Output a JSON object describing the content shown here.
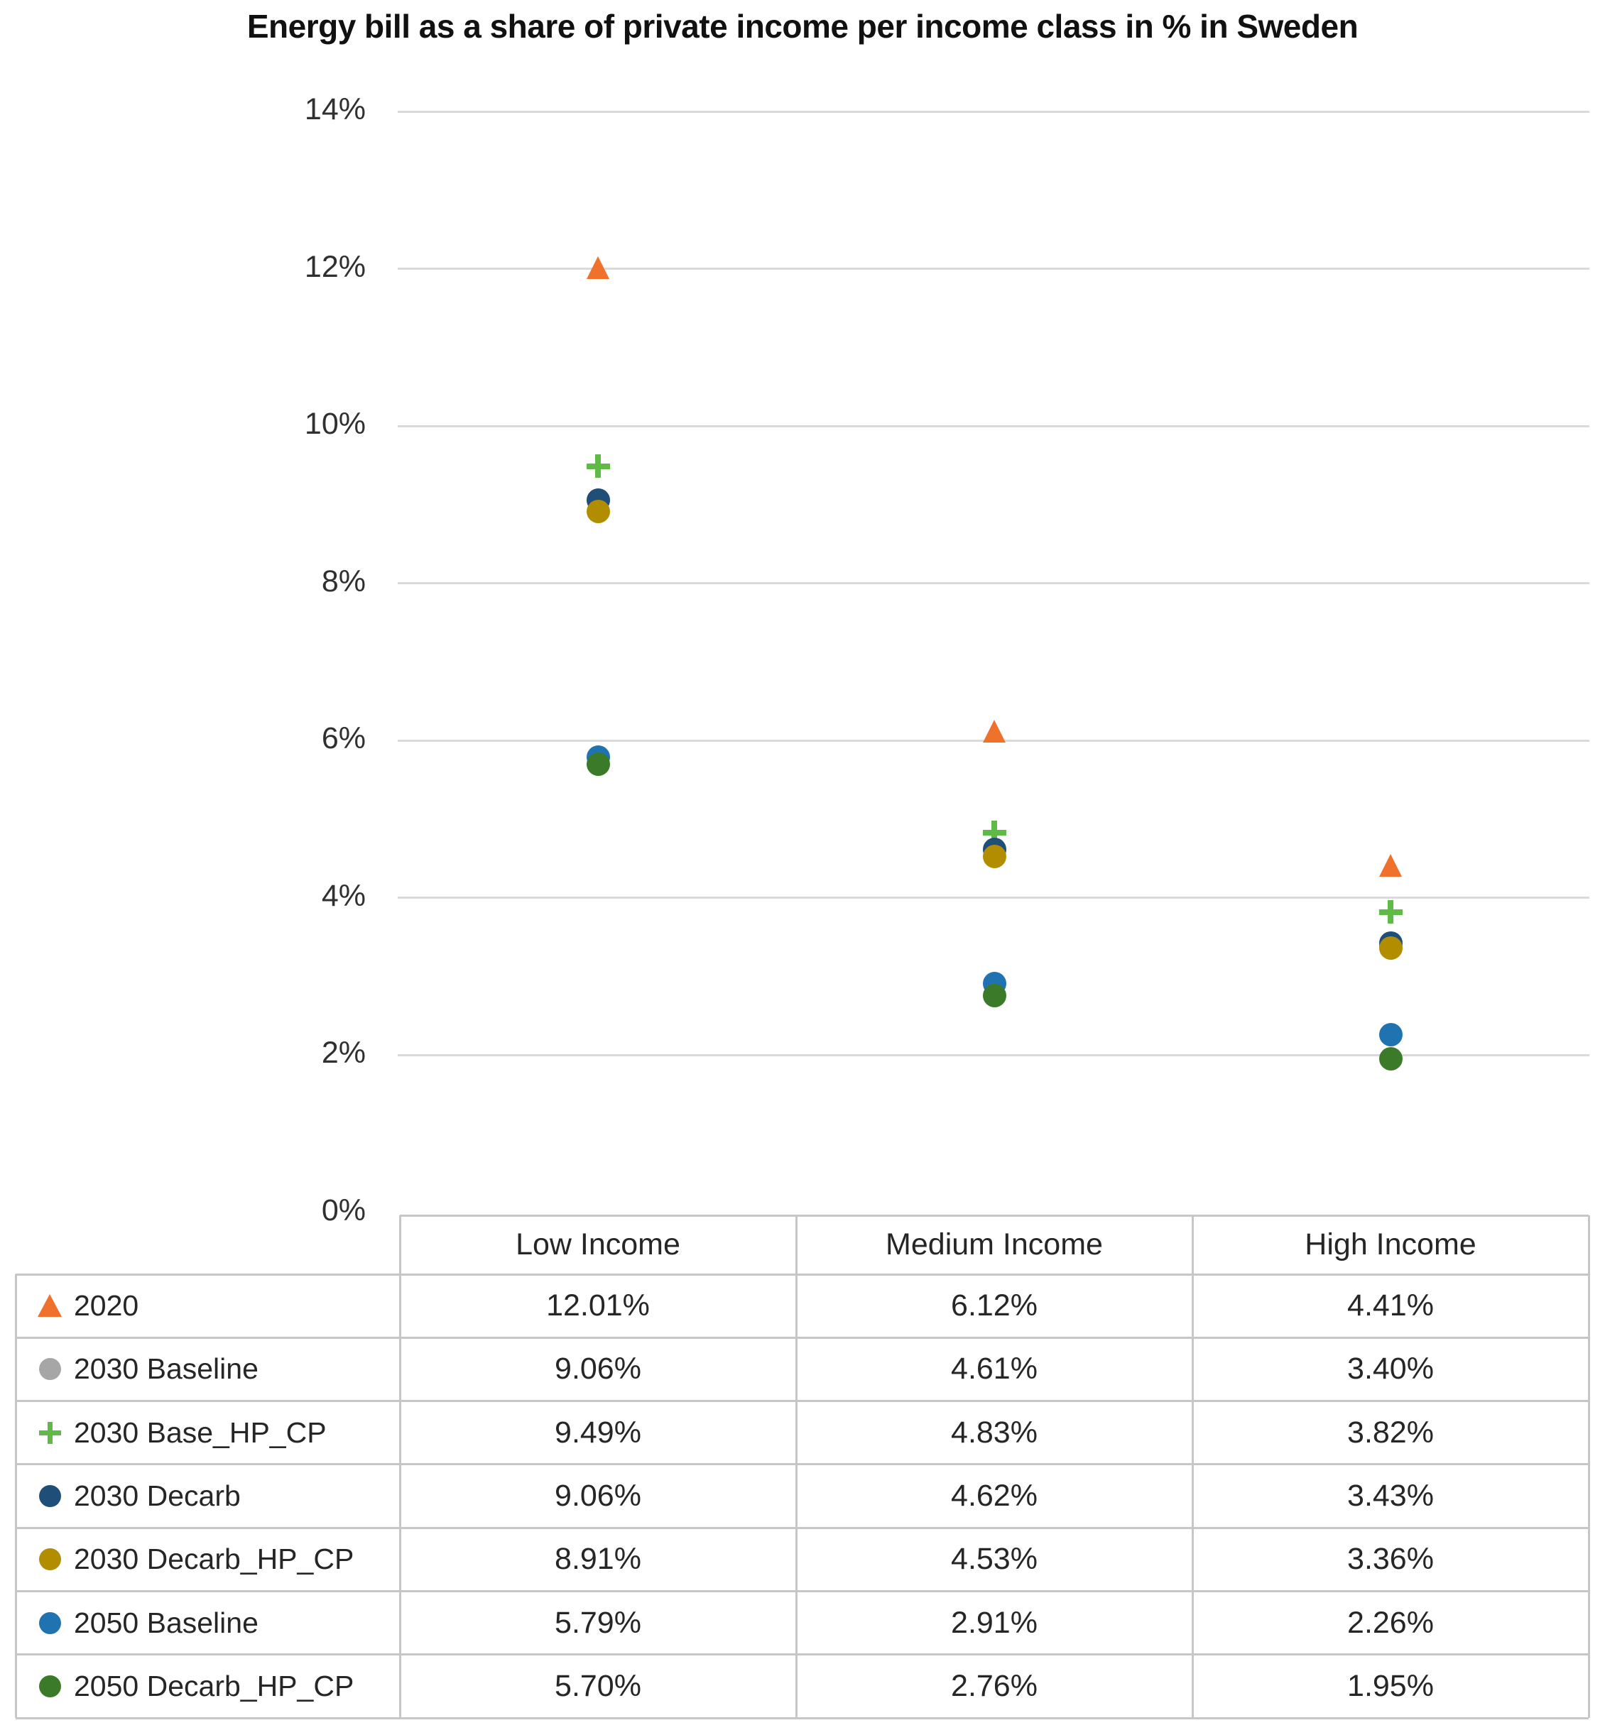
{
  "chart_data": {
    "type": "scatter",
    "title": "Energy bill as a share of private income per income class in % in Sweden",
    "categories": [
      "Low Income",
      "Medium Income",
      "High Income"
    ],
    "series": [
      {
        "name": "2020",
        "marker": "triangle",
        "color": "#F0712C",
        "values": [
          12.01,
          6.12,
          4.41
        ]
      },
      {
        "name": "2030 Baseline",
        "marker": "circle",
        "color": "#A6A6A6",
        "values": [
          9.06,
          4.61,
          3.4
        ]
      },
      {
        "name": "2030 Base_HP_CP",
        "marker": "plus",
        "color": "#5FBA47",
        "values": [
          9.49,
          4.83,
          3.82
        ]
      },
      {
        "name": "2030 Decarb",
        "marker": "circle",
        "color": "#1F4E79",
        "values": [
          9.06,
          4.62,
          3.43
        ]
      },
      {
        "name": "2030 Decarb_HP_CP",
        "marker": "circle",
        "color": "#B28D00",
        "values": [
          8.91,
          4.53,
          3.36
        ]
      },
      {
        "name": "2050 Baseline",
        "marker": "circle",
        "color": "#1F73B0",
        "values": [
          5.79,
          2.91,
          2.26
        ]
      },
      {
        "name": "2050 Decarb_HP_CP",
        "marker": "circle",
        "color": "#3A7A28",
        "values": [
          5.7,
          2.76,
          1.95
        ]
      }
    ],
    "y_axis": {
      "min": 0,
      "max": 14,
      "step": 2,
      "tick_labels": [
        "0%",
        "2%",
        "4%",
        "6%",
        "8%",
        "10%",
        "12%",
        "14%"
      ],
      "gridlines": true
    },
    "value_suffix": "%",
    "value_decimals": 2,
    "legend_position": "table-left",
    "grid_color": "#dadada",
    "table_border_color": "#c6c6c6"
  }
}
